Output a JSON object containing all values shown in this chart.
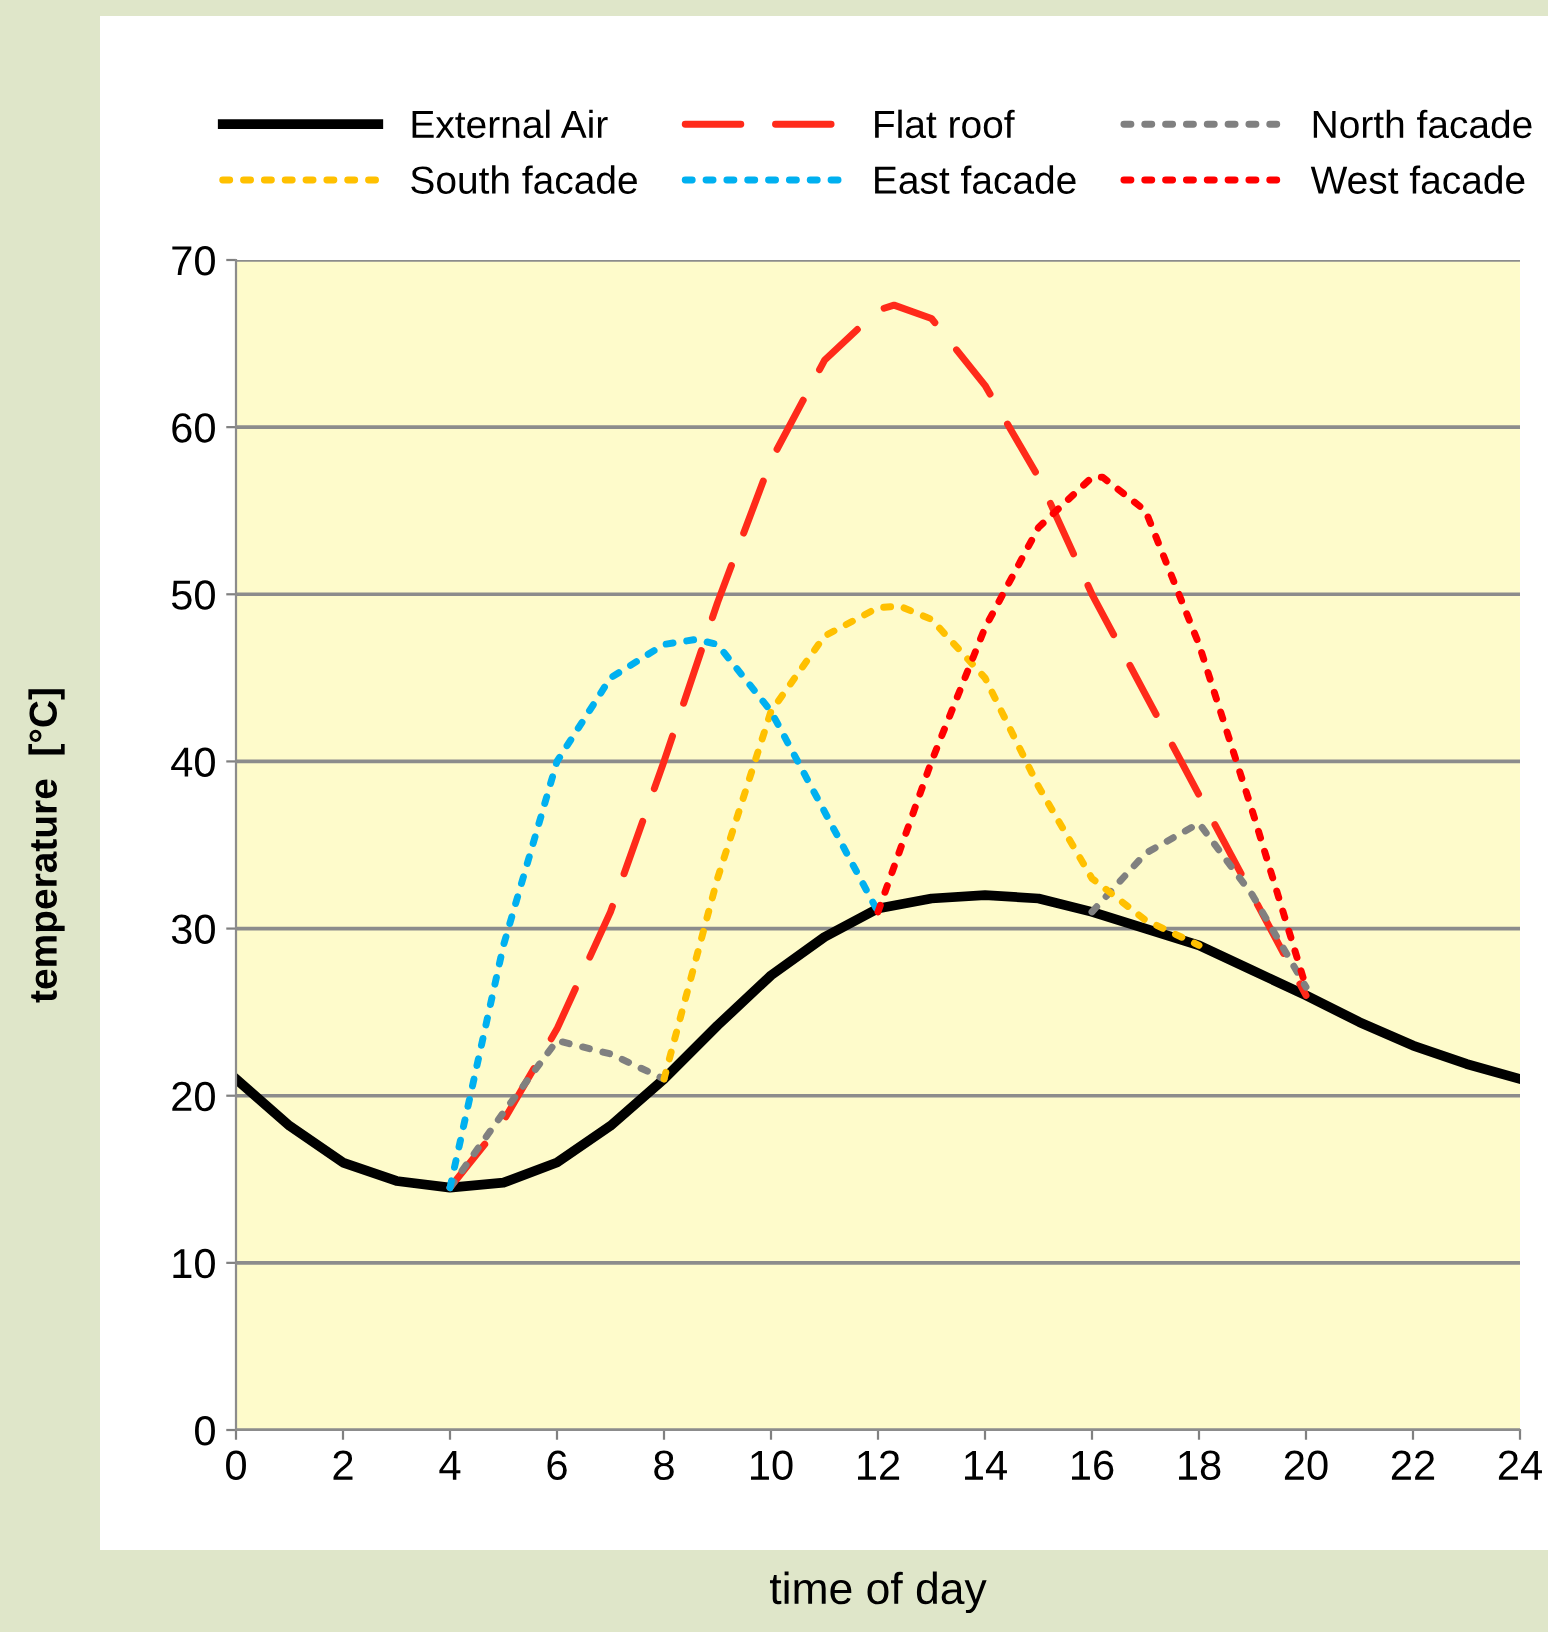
{
  "chart_data": {
    "type": "line",
    "xlabel": "time of day",
    "ylabel": "temperature  [°C]",
    "xlim": [
      0,
      24
    ],
    "xticks": [
      0,
      2,
      4,
      6,
      8,
      10,
      12,
      14,
      16,
      18,
      20,
      22,
      24
    ],
    "ylim": [
      0,
      70
    ],
    "yticks": [
      0,
      10,
      20,
      30,
      40,
      50,
      60,
      70
    ],
    "grid": "y",
    "legend": "top",
    "marker": "none",
    "series": [
      {
        "name": "External Air",
        "color": "#000000",
        "line_style": "solid",
        "x": [
          0,
          1,
          2,
          3,
          4,
          5,
          6,
          7,
          8,
          9,
          10,
          11,
          12,
          13,
          14,
          15,
          16,
          17,
          18,
          19,
          20,
          21,
          22,
          23,
          24
        ],
        "values": [
          21,
          18.2,
          16,
          14.9,
          14.5,
          14.8,
          16,
          18.2,
          21,
          24.2,
          27.2,
          29.5,
          31.2,
          31.8,
          32,
          31.8,
          31,
          30,
          29,
          27.5,
          26,
          24.4,
          23,
          21.9,
          21
        ]
      },
      {
        "name": "Flat roof",
        "color": "#ff2a1a",
        "line_style": "dashed",
        "x": [
          4,
          5,
          6,
          7,
          8,
          9,
          10,
          11,
          12,
          12.3,
          13,
          14,
          15,
          16,
          17,
          18,
          19,
          20
        ],
        "values": [
          14.5,
          18.5,
          24,
          31,
          40,
          49.5,
          58,
          64,
          67,
          67.3,
          66.5,
          62.5,
          57,
          50,
          44,
          38,
          32,
          26
        ]
      },
      {
        "name": "North facade",
        "color": "#808080",
        "line_style": "dotted",
        "x": [
          4,
          5,
          6,
          7,
          8,
          12,
          16,
          17,
          18,
          19,
          20
        ],
        "values": [
          14.5,
          19,
          23.3,
          22.5,
          21,
          null,
          31,
          34.5,
          36.3,
          32,
          26.5
        ]
      },
      {
        "name": "South facade",
        "color": "#ffc000",
        "line_style": "dotted",
        "x": [
          8,
          9,
          10,
          11,
          12,
          12.4,
          13,
          14,
          15,
          16,
          17,
          18
        ],
        "values": [
          21,
          33,
          43,
          47.5,
          49.2,
          49.3,
          48.5,
          45,
          38.5,
          33,
          30.5,
          29
        ]
      },
      {
        "name": "East facade",
        "color": "#00b0f0",
        "line_style": "dotted",
        "x": [
          4,
          5,
          6,
          7,
          8,
          8.6,
          9,
          10,
          11,
          12
        ],
        "values": [
          14.5,
          29,
          40,
          45,
          47,
          47.3,
          47,
          43,
          37,
          31
        ]
      },
      {
        "name": "West facade",
        "color": "#ff0000",
        "line_style": "dotted",
        "x": [
          12,
          13,
          14,
          15,
          16,
          16.2,
          17,
          18,
          19,
          20
        ],
        "values": [
          31,
          40,
          48,
          54,
          57,
          57,
          55,
          47,
          37,
          26.5
        ]
      }
    ]
  }
}
